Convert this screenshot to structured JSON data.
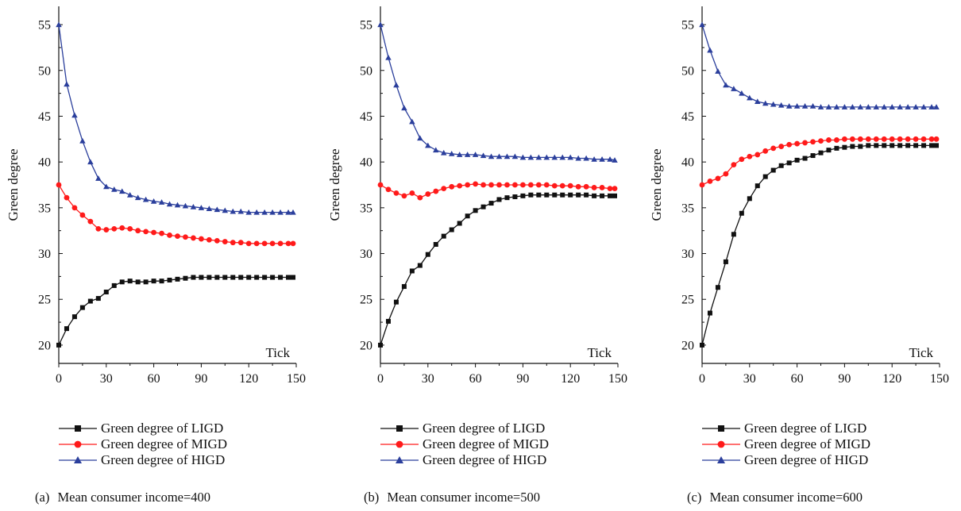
{
  "colors": {
    "lig": "#111111",
    "mig": "#ff1a1a",
    "hig": "#2b3f9c",
    "axis": "#111111"
  },
  "chart_data": [
    {
      "type": "line",
      "caption_tag": "(a)",
      "caption_text": "Mean consumer income=400",
      "ylabel": "Green degree",
      "xlabel": "Tick",
      "xlim": [
        0,
        150
      ],
      "ylim": [
        18,
        57
      ],
      "xticks": [
        0,
        30,
        60,
        90,
        120,
        150
      ],
      "yticks": [
        20,
        25,
        30,
        35,
        40,
        45,
        50,
        55
      ],
      "series": [
        {
          "name": "Green degree of LIGD",
          "key": "lig",
          "marker": "square",
          "x": [
            0,
            5,
            10,
            15,
            20,
            25,
            30,
            35,
            40,
            45,
            50,
            55,
            60,
            65,
            70,
            75,
            80,
            85,
            90,
            95,
            100,
            105,
            110,
            115,
            120,
            125,
            130,
            135,
            140,
            145,
            148
          ],
          "y": [
            20,
            21.8,
            23.1,
            24.1,
            24.8,
            25.1,
            25.8,
            26.5,
            26.9,
            27.0,
            26.9,
            26.9,
            27.0,
            27.0,
            27.1,
            27.2,
            27.3,
            27.4,
            27.4,
            27.4,
            27.4,
            27.4,
            27.4,
            27.4,
            27.4,
            27.4,
            27.4,
            27.4,
            27.4,
            27.4,
            27.4
          ]
        },
        {
          "name": "Green degree of MIGD",
          "key": "mig",
          "marker": "circle",
          "x": [
            0,
            5,
            10,
            15,
            20,
            25,
            30,
            35,
            40,
            45,
            50,
            55,
            60,
            65,
            70,
            75,
            80,
            85,
            90,
            95,
            100,
            105,
            110,
            115,
            120,
            125,
            130,
            135,
            140,
            145,
            148
          ],
          "y": [
            37.5,
            36.1,
            35.0,
            34.2,
            33.5,
            32.7,
            32.6,
            32.7,
            32.8,
            32.7,
            32.5,
            32.4,
            32.3,
            32.2,
            32.0,
            31.9,
            31.8,
            31.7,
            31.6,
            31.5,
            31.4,
            31.3,
            31.2,
            31.2,
            31.1,
            31.1,
            31.1,
            31.1,
            31.1,
            31.1,
            31.1
          ]
        },
        {
          "name": "Green degree of HIGD",
          "key": "hig",
          "marker": "triangle",
          "x": [
            0,
            5,
            10,
            15,
            20,
            25,
            30,
            35,
            40,
            45,
            50,
            55,
            60,
            65,
            70,
            75,
            80,
            85,
            90,
            95,
            100,
            105,
            110,
            115,
            120,
            125,
            130,
            135,
            140,
            145,
            148
          ],
          "y": [
            55,
            48.5,
            45.1,
            42.3,
            40.0,
            38.2,
            37.3,
            37.0,
            36.8,
            36.4,
            36.1,
            35.9,
            35.7,
            35.6,
            35.4,
            35.3,
            35.2,
            35.1,
            35.0,
            34.9,
            34.8,
            34.7,
            34.6,
            34.6,
            34.5,
            34.5,
            34.5,
            34.5,
            34.5,
            34.5,
            34.5
          ]
        }
      ]
    },
    {
      "type": "line",
      "caption_tag": "(b)",
      "caption_text": "Mean consumer income=500",
      "ylabel": "Green degree",
      "xlabel": "Tick",
      "xlim": [
        0,
        150
      ],
      "ylim": [
        18,
        57
      ],
      "xticks": [
        0,
        30,
        60,
        90,
        120,
        150
      ],
      "yticks": [
        20,
        25,
        30,
        35,
        40,
        45,
        50,
        55
      ],
      "series": [
        {
          "name": "Green degree of LIGD",
          "key": "lig",
          "marker": "square",
          "x": [
            0,
            5,
            10,
            15,
            20,
            25,
            30,
            35,
            40,
            45,
            50,
            55,
            60,
            65,
            70,
            75,
            80,
            85,
            90,
            95,
            100,
            105,
            110,
            115,
            120,
            125,
            130,
            135,
            140,
            145,
            148
          ],
          "y": [
            20,
            22.6,
            24.7,
            26.4,
            28.1,
            28.7,
            29.9,
            31.0,
            31.9,
            32.6,
            33.3,
            34.1,
            34.7,
            35.1,
            35.5,
            35.9,
            36.1,
            36.2,
            36.3,
            36.4,
            36.4,
            36.4,
            36.4,
            36.4,
            36.4,
            36.4,
            36.4,
            36.3,
            36.3,
            36.3,
            36.3
          ]
        },
        {
          "name": "Green degree of MIGD",
          "key": "mig",
          "marker": "circle",
          "x": [
            0,
            5,
            10,
            15,
            20,
            25,
            30,
            35,
            40,
            45,
            50,
            55,
            60,
            65,
            70,
            75,
            80,
            85,
            90,
            95,
            100,
            105,
            110,
            115,
            120,
            125,
            130,
            135,
            140,
            145,
            148
          ],
          "y": [
            37.5,
            37.0,
            36.6,
            36.3,
            36.6,
            36.1,
            36.5,
            36.8,
            37.1,
            37.3,
            37.4,
            37.5,
            37.6,
            37.5,
            37.5,
            37.5,
            37.5,
            37.5,
            37.5,
            37.5,
            37.5,
            37.5,
            37.4,
            37.4,
            37.4,
            37.3,
            37.3,
            37.2,
            37.2,
            37.1,
            37.1
          ]
        },
        {
          "name": "Green degree of HIGD",
          "key": "hig",
          "marker": "triangle",
          "x": [
            0,
            5,
            10,
            15,
            20,
            25,
            30,
            35,
            40,
            45,
            50,
            55,
            60,
            65,
            70,
            75,
            80,
            85,
            90,
            95,
            100,
            105,
            110,
            115,
            120,
            125,
            130,
            135,
            140,
            145,
            148
          ],
          "y": [
            55,
            51.4,
            48.4,
            45.9,
            44.4,
            42.6,
            41.8,
            41.3,
            41.0,
            40.9,
            40.8,
            40.8,
            40.8,
            40.7,
            40.6,
            40.6,
            40.6,
            40.6,
            40.5,
            40.5,
            40.5,
            40.5,
            40.5,
            40.5,
            40.5,
            40.4,
            40.4,
            40.3,
            40.3,
            40.3,
            40.2
          ]
        }
      ]
    },
    {
      "type": "line",
      "caption_tag": "(c)",
      "caption_text": "Mean consumer income=600",
      "ylabel": "Green degree",
      "xlabel": "Tick",
      "xlim": [
        0,
        150
      ],
      "ylim": [
        18,
        57
      ],
      "xticks": [
        0,
        30,
        60,
        90,
        120,
        150
      ],
      "yticks": [
        20,
        25,
        30,
        35,
        40,
        45,
        50,
        55
      ],
      "series": [
        {
          "name": "Green degree of LIGD",
          "key": "lig",
          "marker": "square",
          "x": [
            0,
            5,
            10,
            15,
            20,
            25,
            30,
            35,
            40,
            45,
            50,
            55,
            60,
            65,
            70,
            75,
            80,
            85,
            90,
            95,
            100,
            105,
            110,
            115,
            120,
            125,
            130,
            135,
            140,
            145,
            148
          ],
          "y": [
            20,
            23.5,
            26.3,
            29.1,
            32.1,
            34.4,
            36.0,
            37.4,
            38.4,
            39.1,
            39.6,
            39.9,
            40.2,
            40.4,
            40.7,
            41.0,
            41.3,
            41.5,
            41.6,
            41.7,
            41.7,
            41.8,
            41.8,
            41.8,
            41.8,
            41.8,
            41.8,
            41.8,
            41.8,
            41.8,
            41.8
          ]
        },
        {
          "name": "Green degree of MIGD",
          "key": "mig",
          "marker": "circle",
          "x": [
            0,
            5,
            10,
            15,
            20,
            25,
            30,
            35,
            40,
            45,
            50,
            55,
            60,
            65,
            70,
            75,
            80,
            85,
            90,
            95,
            100,
            105,
            110,
            115,
            120,
            125,
            130,
            135,
            140,
            145,
            148
          ],
          "y": [
            37.5,
            37.9,
            38.2,
            38.7,
            39.7,
            40.3,
            40.6,
            40.8,
            41.2,
            41.5,
            41.7,
            41.9,
            42.0,
            42.1,
            42.2,
            42.3,
            42.4,
            42.4,
            42.5,
            42.5,
            42.5,
            42.5,
            42.5,
            42.5,
            42.5,
            42.5,
            42.5,
            42.5,
            42.5,
            42.5,
            42.5
          ]
        },
        {
          "name": "Green degree of HIGD",
          "key": "hig",
          "marker": "triangle",
          "x": [
            0,
            5,
            10,
            15,
            20,
            25,
            30,
            35,
            40,
            45,
            50,
            55,
            60,
            65,
            70,
            75,
            80,
            85,
            90,
            95,
            100,
            105,
            110,
            115,
            120,
            125,
            130,
            135,
            140,
            145,
            148
          ],
          "y": [
            55,
            52.2,
            49.9,
            48.4,
            48.0,
            47.5,
            47.0,
            46.6,
            46.4,
            46.3,
            46.2,
            46.1,
            46.1,
            46.1,
            46.1,
            46.0,
            46.0,
            46.0,
            46.0,
            46.0,
            46.0,
            46.0,
            46.0,
            46.0,
            46.0,
            46.0,
            46.0,
            46.0,
            46.0,
            46.0,
            46.0
          ]
        }
      ]
    }
  ]
}
